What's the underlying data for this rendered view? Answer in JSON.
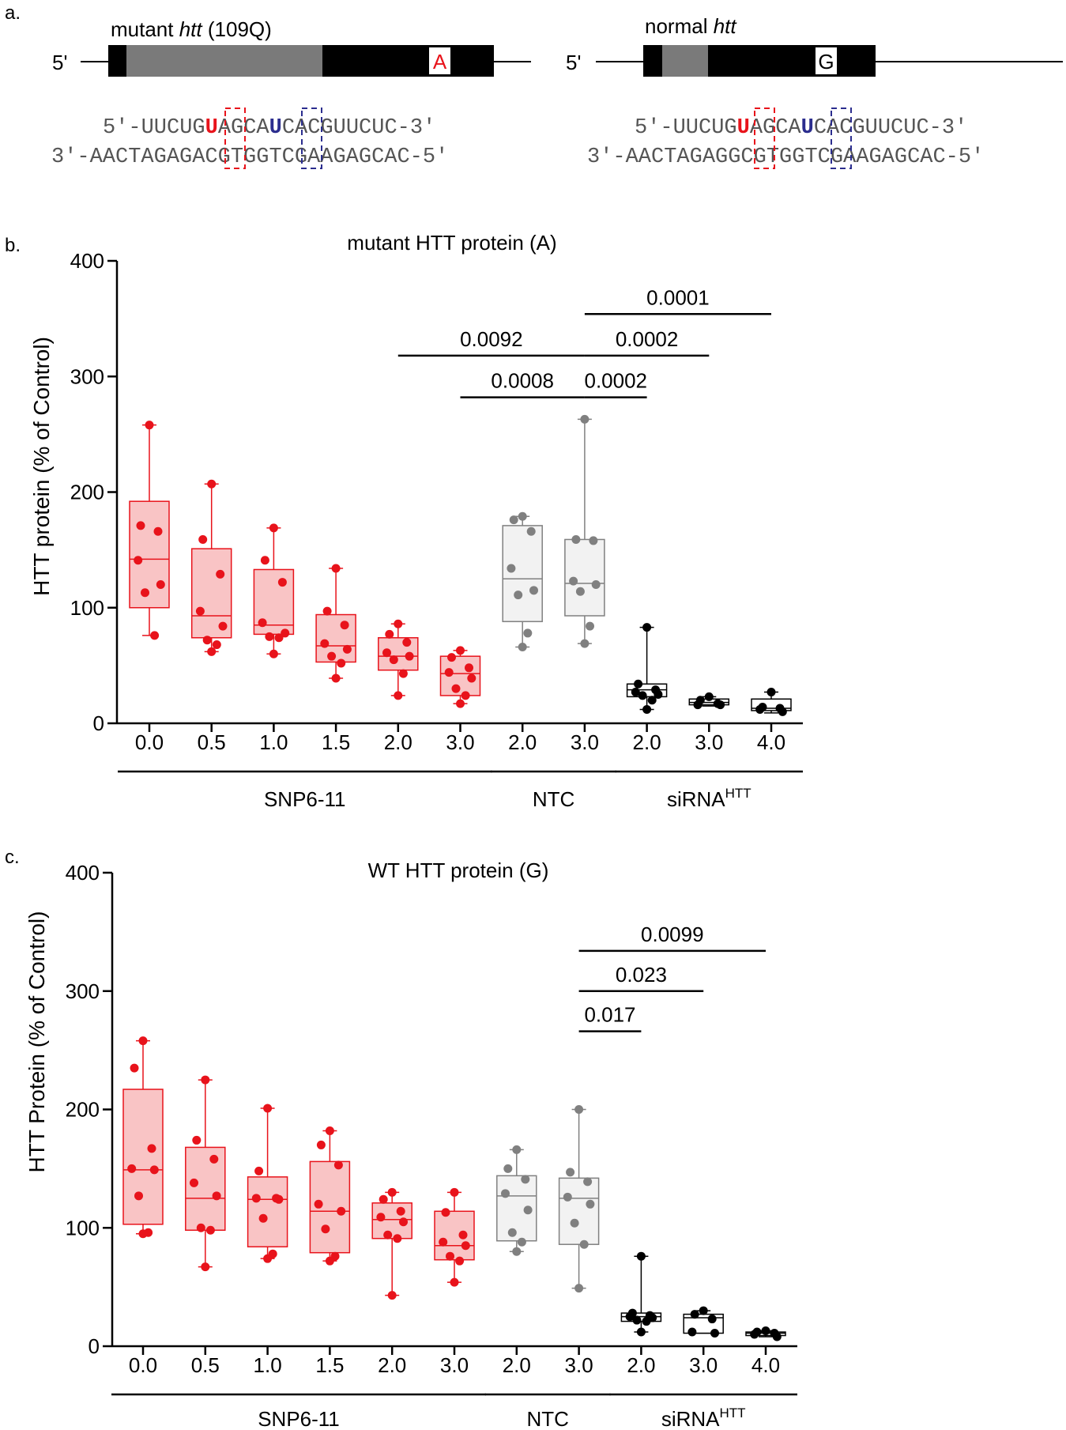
{
  "panel_a": {
    "label": "a.",
    "mutant": {
      "title_prefix": "mutant ",
      "title_gene": "htt",
      "title_suffix": " (109Q)",
      "five_prime": "5'",
      "snp_base": "A",
      "guide": {
        "pre": "5'-UUCUG",
        "red": "U",
        "mid": "AGCA",
        "blue": "U",
        "post": "CACGUUCUC-3'"
      },
      "target": "3'-AACTAGAGACGTGGTCGAAGAGCAC-5'"
    },
    "normal": {
      "title_prefix": "normal ",
      "title_gene": "htt",
      "five_prime": "5'",
      "snp_base": "G",
      "guide": {
        "pre": "5'-UUCUG",
        "red": "U",
        "mid": "AGCA",
        "blue": "U",
        "post": "CACGUUCUC-3'"
      },
      "target": "3'-AACTAGAGGCGTGGTCGAAGAGCAC-5'"
    },
    "colors": {
      "red": "#e8131b",
      "blue": "#2b2d8e",
      "repeat": "#7a7a7a",
      "exon": "#000000"
    }
  },
  "chart_data": [
    {
      "type": "box",
      "panel_label": "b.",
      "title": "mutant HTT protein (A)",
      "ylabel": "HTT protein (% of Control)",
      "ylim": [
        0,
        400
      ],
      "yticks": [
        0,
        100,
        200,
        300,
        400
      ],
      "categories": [
        "0.0",
        "0.5",
        "1.0",
        "1.5",
        "2.0",
        "3.0",
        "2.0",
        "3.0",
        "2.0",
        "3.0",
        "4.0"
      ],
      "groups": [
        {
          "label": "SNP6-11",
          "from": 0,
          "to": 5
        },
        {
          "label": "NTC",
          "from": 6,
          "to": 7
        },
        {
          "label": "siRNA",
          "sup": "HTT",
          "from": 8,
          "to": 10
        }
      ],
      "series": [
        {
          "name": "SNP6-11 0.0",
          "color": "#e8131b",
          "fill": "#f9c4c5",
          "min": 76,
          "q1": 100,
          "median": 142,
          "q3": 192,
          "max": 258,
          "points": [
            258,
            171,
            166,
            141,
            120,
            113,
            76
          ]
        },
        {
          "name": "SNP6-11 0.5",
          "color": "#e8131b",
          "fill": "#f9c4c5",
          "min": 62,
          "q1": 74,
          "median": 93,
          "q3": 151,
          "max": 207,
          "points": [
            207,
            159,
            129,
            97,
            84,
            72,
            68,
            62
          ]
        },
        {
          "name": "SNP6-11 1.0",
          "color": "#e8131b",
          "fill": "#f9c4c5",
          "min": 60,
          "q1": 77,
          "median": 85,
          "q3": 133,
          "max": 169,
          "points": [
            169,
            141,
            122,
            87,
            78,
            75,
            74,
            60
          ]
        },
        {
          "name": "SNP6-11 1.5",
          "color": "#e8131b",
          "fill": "#f9c4c5",
          "min": 39,
          "q1": 53,
          "median": 67,
          "q3": 94,
          "max": 134,
          "points": [
            134,
            97,
            85,
            69,
            64,
            58,
            52,
            39
          ]
        },
        {
          "name": "SNP6-11 2.0",
          "color": "#e8131b",
          "fill": "#f9c4c5",
          "min": 24,
          "q1": 46,
          "median": 58,
          "q3": 74,
          "max": 86,
          "points": [
            86,
            77,
            70,
            61,
            58,
            55,
            43,
            24
          ]
        },
        {
          "name": "SNP6-11 3.0",
          "color": "#e8131b",
          "fill": "#f9c4c5",
          "min": 17,
          "q1": 24,
          "median": 43,
          "q3": 58,
          "max": 63,
          "points": [
            63,
            57,
            48,
            44,
            39,
            30,
            24,
            17
          ]
        },
        {
          "name": "NTC 2.0",
          "color": "#808080",
          "fill": "#f2f2f2",
          "min": 66,
          "q1": 88,
          "median": 125,
          "q3": 171,
          "max": 179,
          "points": [
            179,
            176,
            166,
            134,
            115,
            111,
            78,
            66
          ]
        },
        {
          "name": "NTC 3.0",
          "color": "#808080",
          "fill": "#f2f2f2",
          "min": 69,
          "q1": 93,
          "median": 121,
          "q3": 159,
          "max": 263,
          "points": [
            263,
            159,
            158,
            123,
            120,
            114,
            84,
            69
          ]
        },
        {
          "name": "siRNA 2.0",
          "color": "#000000",
          "fill": "#ffffff",
          "min": 12,
          "q1": 23,
          "median": 29,
          "q3": 34,
          "max": 83,
          "points": [
            83,
            34,
            29,
            27,
            25,
            24,
            20,
            12
          ]
        },
        {
          "name": "siRNA 3.0",
          "color": "#000000",
          "fill": "#ffffff",
          "min": 15,
          "q1": 16,
          "median": 18,
          "q3": 21,
          "max": 23,
          "points": [
            23,
            20,
            17,
            16,
            16
          ]
        },
        {
          "name": "siRNA 4.0",
          "color": "#000000",
          "fill": "#ffffff",
          "min": 9,
          "q1": 11,
          "median": 13,
          "q3": 21,
          "max": 27,
          "points": [
            27,
            14,
            13,
            12,
            10
          ]
        }
      ],
      "comparisons": [
        {
          "label": "0.0092",
          "from": 4,
          "to": 7,
          "y": 318
        },
        {
          "label": "0.0008",
          "from": 5,
          "to": 7,
          "y": 282
        },
        {
          "label": "0.0002",
          "from": 7,
          "to": 8,
          "y": 282
        },
        {
          "label": "0.0002",
          "from": 7,
          "to": 9,
          "y": 318
        },
        {
          "label": "0.0001",
          "from": 7,
          "to": 10,
          "y": 354
        }
      ]
    },
    {
      "type": "box",
      "panel_label": "c.",
      "title": "WT HTT protein (G)",
      "ylabel": "HTT Protein (% of Control)",
      "ylim": [
        0,
        400
      ],
      "yticks": [
        0,
        100,
        200,
        300,
        400
      ],
      "categories": [
        "0.0",
        "0.5",
        "1.0",
        "1.5",
        "2.0",
        "3.0",
        "2.0",
        "3.0",
        "2.0",
        "3.0",
        "4.0"
      ],
      "groups": [
        {
          "label": "SNP6-11",
          "from": 0,
          "to": 5
        },
        {
          "label": "NTC",
          "from": 6,
          "to": 7
        },
        {
          "label": "siRNA",
          "sup": "HTT",
          "from": 8,
          "to": 10
        }
      ],
      "series": [
        {
          "name": "SNP6-11 0.0",
          "color": "#e8131b",
          "fill": "#f9c4c5",
          "min": 95,
          "q1": 103,
          "median": 149,
          "q3": 217,
          "max": 258,
          "points": [
            258,
            235,
            167,
            150,
            149,
            127,
            96,
            95
          ]
        },
        {
          "name": "SNP6-11 0.5",
          "color": "#e8131b",
          "fill": "#f9c4c5",
          "min": 67,
          "q1": 98,
          "median": 125,
          "q3": 168,
          "max": 225,
          "points": [
            225,
            174,
            158,
            138,
            127,
            100,
            98,
            67
          ]
        },
        {
          "name": "SNP6-11 1.0",
          "color": "#e8131b",
          "fill": "#f9c4c5",
          "min": 74,
          "q1": 84,
          "median": 124,
          "q3": 143,
          "max": 201,
          "points": [
            201,
            148,
            125,
            125,
            124,
            108,
            78,
            74
          ]
        },
        {
          "name": "SNP6-11 1.5",
          "color": "#e8131b",
          "fill": "#f9c4c5",
          "min": 72,
          "q1": 79,
          "median": 114,
          "q3": 156,
          "max": 182,
          "points": [
            182,
            170,
            153,
            120,
            114,
            99,
            76,
            72
          ]
        },
        {
          "name": "SNP6-11 2.0",
          "color": "#e8131b",
          "fill": "#f9c4c5",
          "min": 43,
          "q1": 91,
          "median": 107,
          "q3": 121,
          "max": 130,
          "points": [
            130,
            124,
            114,
            109,
            105,
            94,
            91,
            43
          ]
        },
        {
          "name": "SNP6-11 3.0",
          "color": "#e8131b",
          "fill": "#f9c4c5",
          "min": 54,
          "q1": 73,
          "median": 85,
          "q3": 114,
          "max": 130,
          "points": [
            130,
            113,
            94,
            88,
            85,
            76,
            72,
            54
          ]
        },
        {
          "name": "NTC 2.0",
          "color": "#808080",
          "fill": "#f2f2f2",
          "min": 80,
          "q1": 89,
          "median": 127,
          "q3": 144,
          "max": 166,
          "points": [
            166,
            150,
            141,
            129,
            115,
            96,
            88,
            80
          ]
        },
        {
          "name": "NTC 3.0",
          "color": "#808080",
          "fill": "#f2f2f2",
          "min": 49,
          "q1": 86,
          "median": 125,
          "q3": 142,
          "max": 200,
          "points": [
            200,
            147,
            139,
            126,
            120,
            104,
            86,
            49
          ]
        },
        {
          "name": "siRNA 2.0",
          "color": "#000000",
          "fill": "#ffffff",
          "min": 12,
          "q1": 21,
          "median": 25,
          "q3": 28,
          "max": 76,
          "points": [
            76,
            28,
            26,
            25,
            24,
            22,
            21,
            12
          ]
        },
        {
          "name": "siRNA 3.0",
          "color": "#000000",
          "fill": "#ffffff",
          "min": 11,
          "q1": 11,
          "median": 24,
          "q3": 27,
          "max": 30,
          "points": [
            30,
            27,
            23,
            12,
            11
          ]
        },
        {
          "name": "siRNA 4.0",
          "color": "#000000",
          "fill": "#ffffff",
          "min": 8,
          "q1": 9,
          "median": 11,
          "q3": 12,
          "max": 13,
          "points": [
            13,
            12,
            11,
            10,
            8
          ]
        }
      ],
      "comparisons": [
        {
          "label": "0.017",
          "from": 7,
          "to": 8,
          "y": 266
        },
        {
          "label": "0.023",
          "from": 7,
          "to": 9,
          "y": 300
        },
        {
          "label": "0.0099",
          "from": 7,
          "to": 10,
          "y": 334
        }
      ]
    }
  ]
}
